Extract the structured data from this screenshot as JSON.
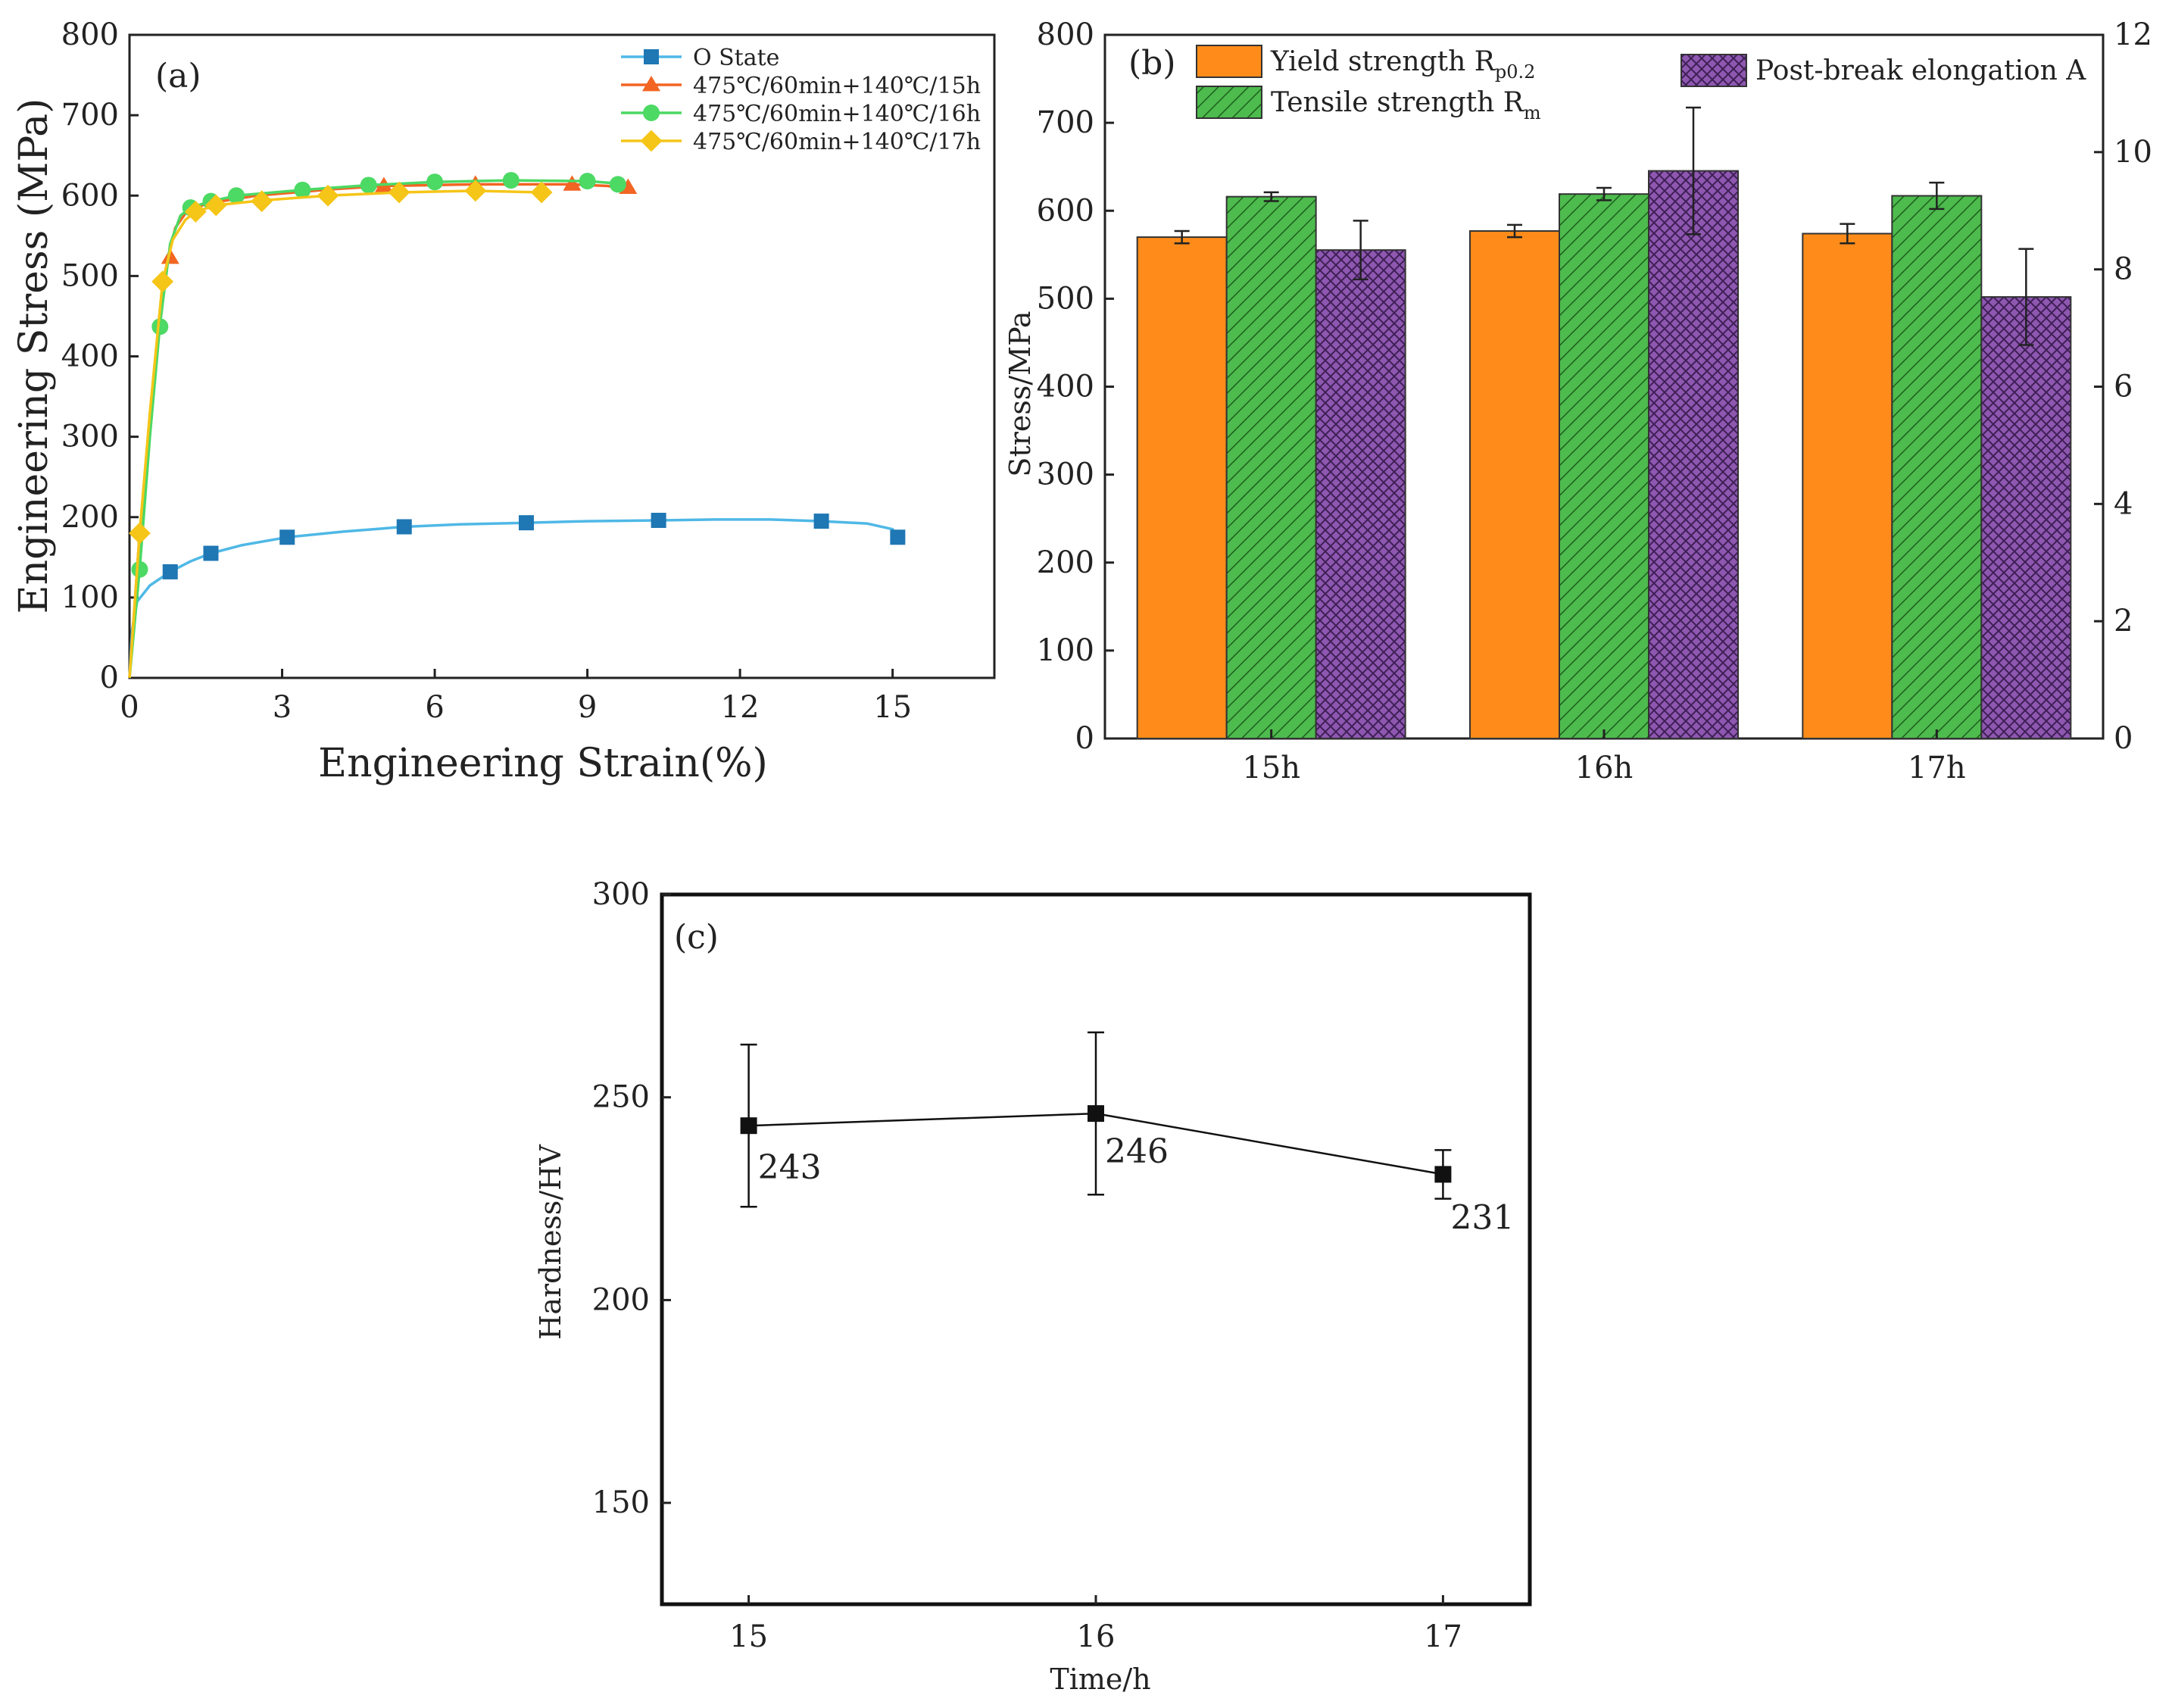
{
  "chart_data": [
    {
      "type": "line",
      "panel_label": "(a)",
      "xlabel": "Engineering Strain(%)",
      "ylabel": "Engineering Stress (MPa)",
      "xlim": [
        0,
        17
      ],
      "ylim": [
        0,
        800
      ],
      "xticks": [
        "0",
        "3",
        "6",
        "9",
        "12",
        "15"
      ],
      "yticks": [
        "0",
        "100",
        "200",
        "300",
        "400",
        "500",
        "600",
        "700",
        "800"
      ],
      "legend_position": "top-right",
      "series": [
        {
          "name": "O State",
          "color": "#1f77b4",
          "line_color": "#4fb8e6",
          "marker": "square",
          "curve": [
            [
              0,
              0
            ],
            [
              0.05,
              60
            ],
            [
              0.15,
              95
            ],
            [
              0.4,
              115
            ],
            [
              0.8,
              132
            ],
            [
              1.2,
              145
            ],
            [
              1.6,
              155
            ],
            [
              2.2,
              165
            ],
            [
              3.1,
              175
            ],
            [
              4.2,
              182
            ],
            [
              5.4,
              188
            ],
            [
              6.5,
              191
            ],
            [
              7.8,
              193
            ],
            [
              9.0,
              195
            ],
            [
              10.4,
              196
            ],
            [
              11.5,
              197
            ],
            [
              12.6,
              197
            ],
            [
              13.6,
              195
            ],
            [
              14.5,
              192
            ],
            [
              15.0,
              185
            ],
            [
              15.1,
              175
            ]
          ],
          "markers": [
            [
              0.8,
              132
            ],
            [
              1.6,
              155
            ],
            [
              3.1,
              175
            ],
            [
              5.4,
              188
            ],
            [
              7.8,
              193
            ],
            [
              10.4,
              196
            ],
            [
              13.6,
              195
            ],
            [
              15.1,
              175
            ]
          ]
        },
        {
          "name": "475℃/60min+140℃/15h",
          "color": "#f26522",
          "line_color": "#f26522",
          "marker": "triangle",
          "curve": [
            [
              0,
              0
            ],
            [
              0.2,
              180
            ],
            [
              0.4,
              320
            ],
            [
              0.6,
              440
            ],
            [
              0.75,
              520
            ],
            [
              0.9,
              560
            ],
            [
              1.1,
              578
            ],
            [
              1.5,
              590
            ],
            [
              2.5,
              600
            ],
            [
              4,
              608
            ],
            [
              5,
              612
            ],
            [
              6.8,
              614
            ],
            [
              8.7,
              614
            ],
            [
              9.4,
              612
            ],
            [
              9.8,
              608
            ]
          ],
          "markers": [
            [
              0.8,
              523
            ],
            [
              5.0,
              612
            ],
            [
              6.8,
              614
            ],
            [
              8.7,
              614
            ],
            [
              9.8,
              610
            ]
          ]
        },
        {
          "name": "475℃/60min+140℃/16h",
          "color": "#4cd964",
          "line_color": "#4cd964",
          "marker": "circle",
          "curve": [
            [
              0,
              0
            ],
            [
              0.2,
              135
            ],
            [
              0.4,
              300
            ],
            [
              0.6,
              440
            ],
            [
              0.8,
              540
            ],
            [
              1.0,
              575
            ],
            [
              1.2,
              585
            ],
            [
              1.6,
              593
            ],
            [
              2.1,
              600
            ],
            [
              3.4,
              607
            ],
            [
              4.7,
              613
            ],
            [
              6.0,
              617
            ],
            [
              7.5,
              619
            ],
            [
              9.0,
              618
            ],
            [
              9.6,
              615
            ]
          ],
          "markers": [
            [
              0.2,
              135
            ],
            [
              0.6,
              437
            ],
            [
              1.2,
              585
            ],
            [
              1.6,
              593
            ],
            [
              2.1,
              600
            ],
            [
              3.4,
              607
            ],
            [
              4.7,
              613
            ],
            [
              6.0,
              617
            ],
            [
              7.5,
              619
            ],
            [
              9.0,
              618
            ],
            [
              9.6,
              614
            ]
          ]
        },
        {
          "name": "475℃/60min+140℃/17h",
          "color": "#f5c518",
          "line_color": "#f5c518",
          "marker": "diamond",
          "curve": [
            [
              0,
              0
            ],
            [
              0.2,
              180
            ],
            [
              0.4,
              330
            ],
            [
              0.65,
              493
            ],
            [
              0.85,
              545
            ],
            [
              1.1,
              570
            ],
            [
              1.3,
              580
            ],
            [
              1.7,
              588
            ],
            [
              2.6,
              594
            ],
            [
              3.9,
              600
            ],
            [
              5.3,
              604
            ],
            [
              6.8,
              606
            ],
            [
              8.1,
              604
            ]
          ],
          "markers": [
            [
              0.2,
              180
            ],
            [
              0.65,
              493
            ],
            [
              1.3,
              580
            ],
            [
              1.7,
              588
            ],
            [
              2.6,
              593
            ],
            [
              3.9,
              600
            ],
            [
              5.3,
              604
            ],
            [
              6.8,
              606
            ],
            [
              8.1,
              604
            ]
          ]
        }
      ]
    },
    {
      "type": "bar",
      "panel_label": "(b)",
      "categories": [
        "15h",
        "16h",
        "17h"
      ],
      "ylabel": "Stress/MPa",
      "ylim": [
        0,
        800
      ],
      "yticks": [
        "0",
        "100",
        "200",
        "300",
        "400",
        "500",
        "600",
        "700",
        "800"
      ],
      "y2lim": [
        0,
        12
      ],
      "y2ticks": [
        "0",
        "2",
        "4",
        "6",
        "8",
        "10",
        "12"
      ],
      "series": [
        {
          "name": "Yield strength R",
          "sub": "p0.2",
          "color": "#ff8c1a",
          "pattern": "none",
          "axis": "left",
          "values": [
            570,
            577,
            574
          ],
          "errors": [
            7,
            7,
            11
          ]
        },
        {
          "name": "Tensile strength R",
          "sub": "m",
          "color": "#4dbb4d",
          "pattern": "diagonal",
          "axis": "left",
          "values": [
            616,
            619,
            617
          ],
          "errors": [
            5,
            7,
            15
          ]
        },
        {
          "name": "Post-break elongation A",
          "sub": "",
          "color": "#8e57b0",
          "pattern": "crosshatch",
          "axis": "right",
          "values": [
            8.33,
            9.68,
            7.53
          ],
          "errors": [
            0.5,
            1.08,
            0.82
          ]
        }
      ]
    },
    {
      "type": "line",
      "panel_label": "(c)",
      "xlabel": "Time/h",
      "ylabel": "Hardness/HV",
      "x": [
        15,
        16,
        17
      ],
      "y": [
        243,
        246,
        231
      ],
      "errors": [
        20,
        20,
        6
      ],
      "point_labels": [
        "243",
        "246",
        "231"
      ],
      "xlim": [
        14.75,
        17.25
      ],
      "ylim": [
        125,
        300
      ],
      "xticks": [
        "15",
        "16",
        "17"
      ],
      "yticks": [
        "150",
        "200",
        "250",
        "300"
      ]
    }
  ]
}
